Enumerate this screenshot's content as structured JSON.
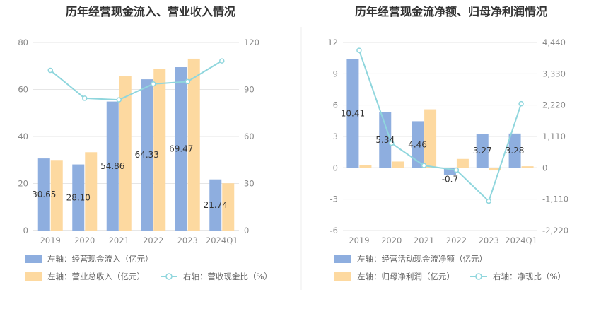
{
  "colors": {
    "bar_blue": "#8eaedf",
    "bar_peach": "#fdd9a0",
    "line_cyan": "#8fd6dd",
    "grid": "#e6e6e6",
    "divider": "#eeeeee"
  },
  "chart_data": [
    {
      "type": "bar",
      "title": "历年经营现金流入、营业收入情况",
      "categories": [
        "2019",
        "2020",
        "2021",
        "2022",
        "2023",
        "2024Q1"
      ],
      "left_axis": {
        "min": 0,
        "max": 80,
        "ticks": [
          "0",
          "20",
          "40",
          "60",
          "80"
        ]
      },
      "right_axis": {
        "min": 0,
        "max": 120,
        "ticks": [
          "0",
          "30",
          "60",
          "90",
          "120"
        ]
      },
      "series": [
        {
          "name": "左轴：经营现金流入（亿元）",
          "kind": "bar",
          "axis": "left",
          "color": "#8eaedf",
          "values": [
            30.65,
            28.1,
            54.86,
            64.33,
            69.47,
            21.74
          ],
          "labels": [
            "30.65",
            "28.10",
            "54.86",
            "64.33",
            "69.47",
            "21.74"
          ]
        },
        {
          "name": "左轴：营业总收入（亿元）",
          "kind": "bar",
          "axis": "left",
          "color": "#fdd9a0",
          "values": [
            30.0,
            33.3,
            65.8,
            68.8,
            73.1,
            20.1
          ]
        },
        {
          "name": "右轴：营收现金比（%）",
          "kind": "line",
          "axis": "right",
          "color": "#8fd6dd",
          "values": [
            102.2,
            84.4,
            83.4,
            93.5,
            95.0,
            108.2
          ]
        }
      ],
      "legend_position": "bottom",
      "grid": true
    },
    {
      "type": "bar",
      "title": "历年经营现金流净额、归母净利润情况",
      "categories": [
        "2019",
        "2020",
        "2021",
        "2022",
        "2023",
        "2024Q1"
      ],
      "left_axis": {
        "min": -6,
        "max": 12,
        "ticks": [
          "-6",
          "-3",
          "0",
          "3",
          "6",
          "9",
          "12"
        ]
      },
      "right_axis": {
        "min": -2220,
        "max": 4440,
        "ticks": [
          "-2,220",
          "-1,110",
          "0",
          "1,110",
          "2,220",
          "3,330",
          "4,440"
        ]
      },
      "series": [
        {
          "name": "左轴：经营活动现金流净额（亿元）",
          "kind": "bar",
          "axis": "left",
          "color": "#8eaedf",
          "values": [
            10.41,
            5.34,
            4.46,
            -0.7,
            3.27,
            3.28
          ],
          "labels": [
            "10.41",
            "5.34",
            "4.46",
            "-0.7",
            "3.27",
            "3.28"
          ]
        },
        {
          "name": "左轴：归母净利润（亿元）",
          "kind": "bar",
          "axis": "left",
          "color": "#fdd9a0",
          "values": [
            0.25,
            0.6,
            5.6,
            0.85,
            -0.25,
            0.15
          ]
        },
        {
          "name": "右轴：净现比（%）",
          "kind": "line",
          "axis": "right",
          "color": "#8fd6dd",
          "values": [
            4160,
            870,
            80,
            -80,
            -1180,
            2270
          ]
        }
      ],
      "legend_position": "bottom",
      "grid": true
    }
  ]
}
